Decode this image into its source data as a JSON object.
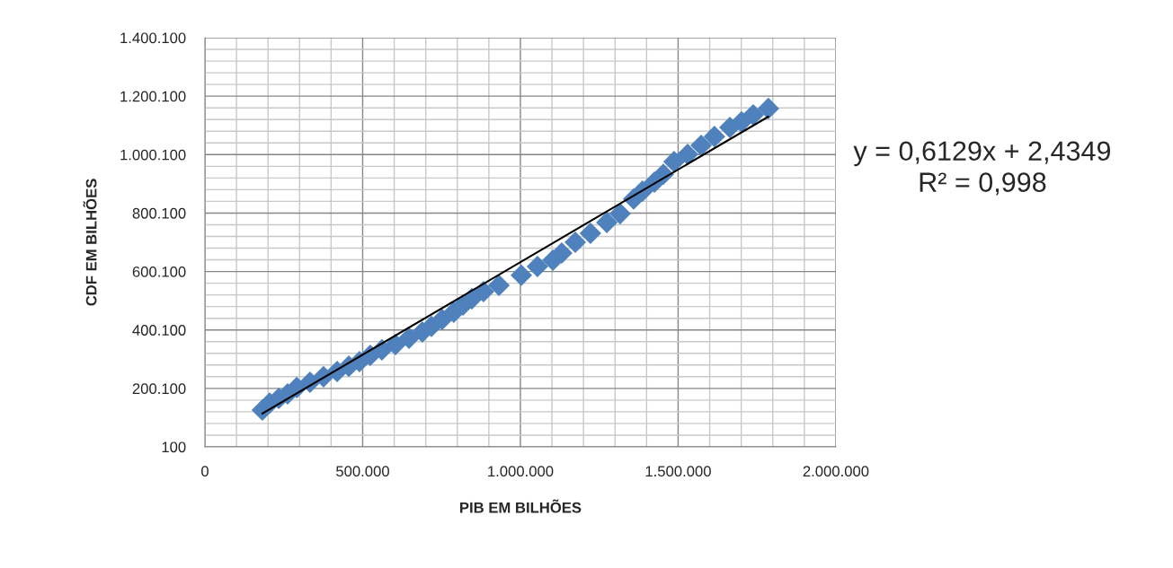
{
  "chart_data": {
    "type": "scatter",
    "xlabel": "PIB EM BILHÕES",
    "ylabel": "CDF EM BILHÕES",
    "annotations": [
      "y = 0,6129x + 2,4349",
      "R² = 0,998"
    ],
    "xlim": [
      0,
      2000000
    ],
    "ylim": [
      100,
      1400100
    ],
    "xticks": [
      0,
      {
        "value": 500000,
        "label": "500.000"
      },
      {
        "value": 1000000,
        "label": "1.000.000"
      },
      {
        "value": 1500000,
        "label": "1.500.000"
      },
      {
        "value": 2000000,
        "label": "2.000.000"
      }
    ],
    "yticks": [
      100,
      {
        "value": 200100,
        "label": "200.100"
      },
      {
        "value": 400100,
        "label": "400.100"
      },
      {
        "value": 600100,
        "label": "600.100"
      },
      {
        "value": 800100,
        "label": "800.100"
      },
      {
        "value": 1000100,
        "label": "1.000.100"
      },
      {
        "value": 1200100,
        "label": "1.200.100"
      },
      {
        "value": 1400100,
        "label": "1.400.100"
      }
    ],
    "grid": true,
    "series": [
      {
        "marker": "diamond",
        "color": "#4f81bd",
        "x": [
          182000,
          205000,
          234000,
          262000,
          291000,
          333000,
          376000,
          419000,
          456000,
          490000,
          524000,
          561000,
          604000,
          647000,
          689000,
          718000,
          752000,
          789000,
          818000,
          846000,
          883000,
          932000,
          1003000,
          1054000,
          1103000,
          1131000,
          1174000,
          1222000,
          1274000,
          1316000,
          1359000,
          1387000,
          1425000,
          1453000,
          1487000,
          1530000,
          1573000,
          1615000,
          1664000,
          1701000,
          1738000,
          1786000
        ],
        "values": [
          126000,
          150000,
          166000,
          181000,
          203000,
          221000,
          240000,
          258000,
          276000,
          292000,
          313000,
          332000,
          350000,
          372000,
          393000,
          412000,
          436000,
          461000,
          485000,
          507000,
          531000,
          553000,
          587000,
          617000,
          639000,
          663000,
          700000,
          731000,
          768000,
          798000,
          848000,
          875000,
          906000,
          933000,
          976000,
          1001000,
          1032000,
          1062000,
          1093000,
          1112000,
          1136000,
          1158000
        ]
      },
      {
        "type": "line",
        "marker": "none",
        "color": "#000000",
        "x": [
          182000,
          1786000
        ],
        "values": [
          114000,
          1130000
        ]
      }
    ]
  }
}
